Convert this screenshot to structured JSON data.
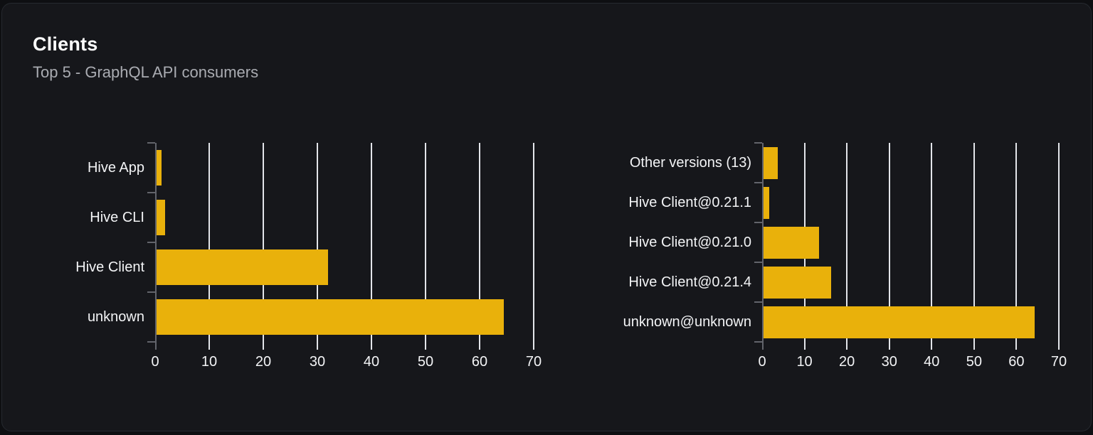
{
  "header": {
    "title": "Clients",
    "subtitle": "Top 5 - GraphQL API consumers"
  },
  "colors": {
    "bar": "#e9b10b",
    "gridline": "#e3e5ea",
    "axis": "#62646b",
    "card_background": "#16171b",
    "page_background": "#0e0f12",
    "card_border": "#26292f",
    "title_text": "#ffffff",
    "subtitle_text": "#aaacb2",
    "label_text": "#f3f4f6"
  },
  "chart_data": [
    {
      "type": "bar",
      "orientation": "horizontal",
      "categories": [
        "Hive App",
        "Hive CLI",
        "Hive Client",
        "unknown"
      ],
      "values": [
        1.2,
        1.8,
        32,
        64.5
      ],
      "xlim": [
        0,
        70
      ],
      "xticks": [
        0,
        10,
        20,
        30,
        40,
        50,
        60,
        70
      ],
      "grid": true,
      "legend": false,
      "bar_color": "#e9b10b"
    },
    {
      "type": "bar",
      "orientation": "horizontal",
      "categories": [
        "Other versions (13)",
        "Hive Client@0.21.1",
        "Hive Client@0.21.0",
        "Hive Client@0.21.4",
        "unknown@unknown"
      ],
      "values": [
        3.7,
        1.7,
        13.5,
        16.2,
        64.3
      ],
      "xlim": [
        0,
        70
      ],
      "xticks": [
        0,
        10,
        20,
        30,
        40,
        50,
        60,
        70
      ],
      "grid": true,
      "legend": false,
      "bar_color": "#e9b10b"
    }
  ]
}
